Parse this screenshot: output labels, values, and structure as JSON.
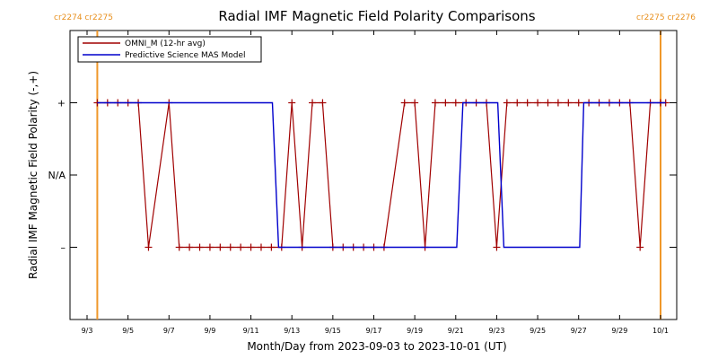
{
  "chart_data": {
    "type": "line",
    "title": "Radial IMF Magnetic Field Polarity Comparisons",
    "xlabel": "Month/Day from 2023-09-03 to 2023-10-01 (UT)",
    "ylabel": "Radial IMF Magnetic Field Polarity (-,+)",
    "xlim": [
      0,
      28.5
    ],
    "ylim": [
      -2,
      2
    ],
    "x_ticks": [
      {
        "x": 0,
        "label": "9/3"
      },
      {
        "x": 2,
        "label": "9/5"
      },
      {
        "x": 4,
        "label": "9/7"
      },
      {
        "x": 6,
        "label": "9/9"
      },
      {
        "x": 8,
        "label": "9/11"
      },
      {
        "x": 10,
        "label": "9/13"
      },
      {
        "x": 12,
        "label": "9/15"
      },
      {
        "x": 14,
        "label": "9/17"
      },
      {
        "x": 16,
        "label": "9/19"
      },
      {
        "x": 18,
        "label": "9/21"
      },
      {
        "x": 20,
        "label": "9/23"
      },
      {
        "x": 22,
        "label": "9/25"
      },
      {
        "x": 24,
        "label": "9/27"
      },
      {
        "x": 26,
        "label": "9/29"
      },
      {
        "x": 28,
        "label": "10/1"
      }
    ],
    "y_ticks": [
      {
        "y": 1,
        "label": "+"
      },
      {
        "y": 0,
        "label": "N/A"
      },
      {
        "y": -1,
        "label": "–"
      }
    ],
    "grid": false,
    "legend_position": "top-left",
    "carrington_markers": [
      {
        "x": 0.5,
        "label": "cr2274 cr2275",
        "label_side": "top-left"
      },
      {
        "x": 28.0,
        "label": "cr2275 cr2276",
        "label_side": "top-right"
      }
    ],
    "series": [
      {
        "name": "OMNI_M (12-hr avg)",
        "color": "#a00000",
        "marker": "plus",
        "points": [
          [
            0.5,
            1
          ],
          [
            1.0,
            1
          ],
          [
            1.5,
            1
          ],
          [
            2.0,
            1
          ],
          [
            2.5,
            1
          ],
          [
            3.0,
            -1
          ],
          [
            4.0,
            1
          ],
          [
            4.5,
            -1
          ],
          [
            5.0,
            -1
          ],
          [
            5.5,
            -1
          ],
          [
            6.0,
            -1
          ],
          [
            6.5,
            -1
          ],
          [
            7.0,
            -1
          ],
          [
            7.5,
            -1
          ],
          [
            8.0,
            -1
          ],
          [
            8.5,
            -1
          ],
          [
            9.0,
            -1
          ],
          [
            9.5,
            -1
          ],
          [
            10.0,
            1
          ],
          [
            10.5,
            -1
          ],
          [
            11.0,
            1
          ],
          [
            11.5,
            1
          ],
          [
            12.0,
            -1
          ],
          [
            12.5,
            -1
          ],
          [
            13.0,
            -1
          ],
          [
            13.5,
            -1
          ],
          [
            14.0,
            -1
          ],
          [
            14.5,
            -1
          ],
          [
            15.5,
            1
          ],
          [
            16.0,
            1
          ],
          [
            16.5,
            -1
          ],
          [
            17.0,
            1
          ],
          [
            17.5,
            1
          ],
          [
            18.0,
            1
          ],
          [
            18.5,
            1
          ],
          [
            19.0,
            1
          ],
          [
            19.5,
            1
          ],
          [
            20.0,
            -1
          ],
          [
            20.5,
            1
          ],
          [
            21.0,
            1
          ],
          [
            21.5,
            1
          ],
          [
            22.0,
            1
          ],
          [
            22.5,
            1
          ],
          [
            23.0,
            1
          ],
          [
            23.5,
            1
          ],
          [
            24.0,
            1
          ],
          [
            24.5,
            1
          ],
          [
            25.0,
            1
          ],
          [
            25.5,
            1
          ],
          [
            26.0,
            1
          ],
          [
            26.5,
            1
          ],
          [
            27.0,
            -1
          ],
          [
            27.5,
            1
          ],
          [
            28.0,
            1
          ],
          [
            28.25,
            1
          ]
        ]
      },
      {
        "name": "Predictive Science MAS Model",
        "color": "#0000cc",
        "marker": "none",
        "points": [
          [
            0.5,
            1
          ],
          [
            9.05,
            1
          ],
          [
            9.35,
            -1
          ],
          [
            18.05,
            -1
          ],
          [
            18.35,
            1
          ],
          [
            20.05,
            1
          ],
          [
            20.35,
            -1
          ],
          [
            24.05,
            -1
          ],
          [
            24.25,
            1
          ],
          [
            28.25,
            1
          ]
        ]
      }
    ]
  }
}
